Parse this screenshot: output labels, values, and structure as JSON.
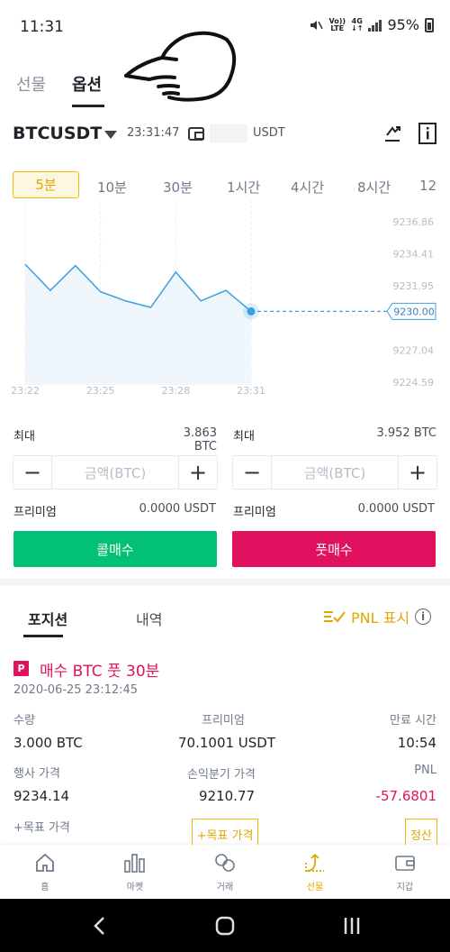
{
  "status_bar": {
    "time": "11:31",
    "volte": "Vo))",
    "lte": "LTE",
    "net": "4G",
    "battery": "95%"
  },
  "top_tabs": [
    {
      "label": "선물",
      "active": false
    },
    {
      "label": "옵션",
      "active": true
    }
  ],
  "symbol": {
    "name": "BTCUSDT",
    "time": "23:31:47",
    "balance_unit": "USDT"
  },
  "timeframes": [
    "5분",
    "10분",
    "30분",
    "1시간",
    "4시간",
    "8시간",
    "12"
  ],
  "chart_data": {
    "type": "line",
    "x_ticks": [
      "23:22",
      "23:25",
      "23:28",
      "23:31"
    ],
    "y_ticks": [
      9236.86,
      9234.41,
      9231.95,
      9227.04,
      9224.59
    ],
    "current_price": "9230.00",
    "points": [
      {
        "x": "23:22",
        "y": 9233.6
      },
      {
        "x": "23:23",
        "y": 9231.6
      },
      {
        "x": "23:24",
        "y": 9233.5
      },
      {
        "x": "23:25",
        "y": 9231.5
      },
      {
        "x": "23:26",
        "y": 9230.8
      },
      {
        "x": "23:27",
        "y": 9230.3
      },
      {
        "x": "23:28",
        "y": 9233.0
      },
      {
        "x": "23:29",
        "y": 9230.8
      },
      {
        "x": "23:30",
        "y": 9231.6
      },
      {
        "x": "23:31",
        "y": 9230.0
      }
    ],
    "ylim": [
      9223.0,
      9238.5
    ],
    "line_color": "#3aa0e0",
    "grid": false
  },
  "order": {
    "call": {
      "max_label": "최대",
      "max_value": "3.863 BTC",
      "placeholder": "금액(BTC)",
      "premium_label": "프리미엄",
      "premium_value": "0.0000 USDT",
      "button": "콜매수",
      "color": "#02c076"
    },
    "put": {
      "max_label": "최대",
      "max_value": "3.952 BTC",
      "placeholder": "금액(BTC)",
      "premium_label": "프리미엄",
      "premium_value": "0.0000 USDT",
      "button": "풋매수",
      "color": "#e0115f"
    }
  },
  "positions": {
    "tabs": [
      "포지션",
      "내역"
    ],
    "pnl_toggle": "PNL 표시",
    "item": {
      "badge": "P",
      "title": "매수 BTC 풋 30분",
      "date": "2020-06-25 23:12:45",
      "quantity_label": "수량",
      "quantity_value": "3.000 BTC",
      "premium_label": "프리미엄",
      "premium_value": "70.1001 USDT",
      "expiry_label": "만료 시간",
      "expiry_value": "10:54",
      "strike_label": "행사 가격",
      "strike_value": "9234.14",
      "breakeven_label": "손익분기 가격",
      "breakeven_value": "9210.77",
      "pnl_label": "PNL",
      "pnl_value": "-57.6801",
      "tp_label": "+목표 가격",
      "tp_button": "+목표 가격",
      "close_button": "정산"
    }
  },
  "bottom_nav": [
    {
      "label": "홈",
      "icon": "home-icon"
    },
    {
      "label": "마켓",
      "icon": "market-icon"
    },
    {
      "label": "거래",
      "icon": "trade-icon"
    },
    {
      "label": "선물",
      "icon": "futures-icon",
      "active": true
    },
    {
      "label": "지갑",
      "icon": "wallet-icon"
    }
  ],
  "colors": {
    "accent": "#f0b90b",
    "buy": "#02c076",
    "sell": "#e0115f",
    "loss": "#e0115f"
  }
}
